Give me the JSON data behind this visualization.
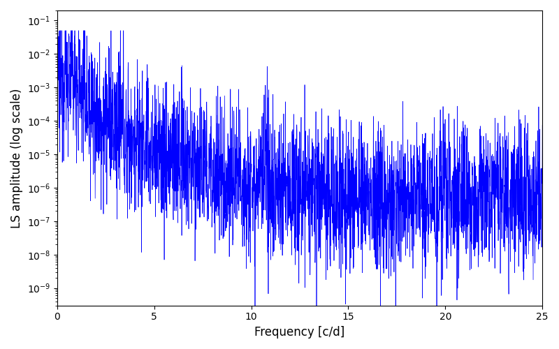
{
  "xlabel": "Frequency [c/d]",
  "ylabel": "LS amplitude (log scale)",
  "line_color": "#0000ff",
  "xlim": [
    0,
    25
  ],
  "ylim": [
    3e-10,
    0.2
  ],
  "xfreq_max": 25,
  "n_points": 3000,
  "seed": 12345,
  "background_color": "#ffffff",
  "figsize": [
    8.0,
    5.0
  ],
  "dpi": 100
}
